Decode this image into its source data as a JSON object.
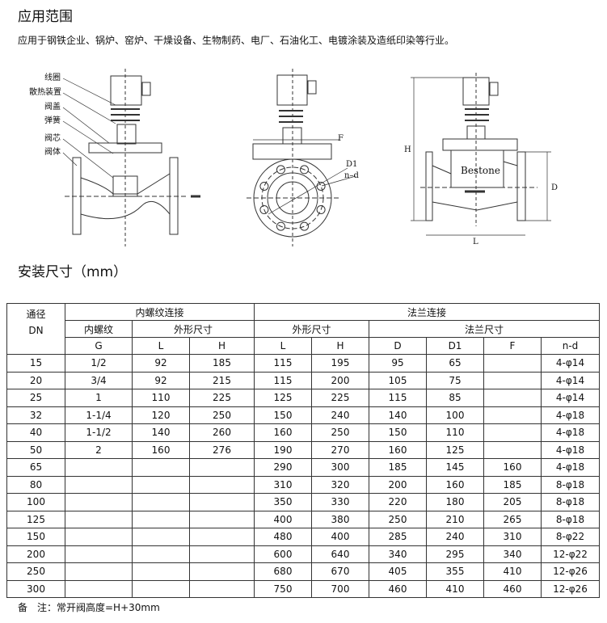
{
  "scope": {
    "title": "应用范围",
    "text": "应用于钢铁企业、锅炉、窑炉、干燥设备、生物制药、电厂、石油化工、电镀涂装及造纸印染等行业。"
  },
  "diagram": {
    "parts": [
      "线圈",
      "散热装置",
      "阀盖",
      "弹簧",
      "阀芯",
      "阀体"
    ],
    "dims": {
      "F": "F",
      "D1": "D1",
      "nd": "n–d",
      "H": "H",
      "D": "D",
      "L": "L"
    },
    "brand": "Bestone"
  },
  "install": {
    "title": "安装尺寸（mm）"
  },
  "table": {
    "h_dn1": "通径",
    "h_dn2": "DN",
    "h_thread": "内螺纹连接",
    "h_flange": "法兰连接",
    "h_thread_sub": "内螺纹",
    "h_outline": "外形尺寸",
    "h_outline2": "外形尺寸",
    "h_flange_size": "法兰尺寸",
    "cols": [
      "G",
      "L",
      "H",
      "L",
      "H",
      "D",
      "D1",
      "F",
      "n-d"
    ],
    "rows": [
      [
        "15",
        "1/2",
        "92",
        "185",
        "115",
        "195",
        "95",
        "65",
        "",
        "4-φ14"
      ],
      [
        "20",
        "3/4",
        "92",
        "215",
        "115",
        "200",
        "105",
        "75",
        "",
        "4-φ14"
      ],
      [
        "25",
        "1",
        "110",
        "225",
        "125",
        "225",
        "115",
        "85",
        "",
        "4-φ14"
      ],
      [
        "32",
        "1-1/4",
        "120",
        "250",
        "150",
        "240",
        "140",
        "100",
        "",
        "4-φ18"
      ],
      [
        "40",
        "1-1/2",
        "140",
        "260",
        "160",
        "250",
        "150",
        "110",
        "",
        "4-φ18"
      ],
      [
        "50",
        "2",
        "160",
        "276",
        "190",
        "270",
        "160",
        "125",
        "",
        "4-φ18"
      ],
      [
        "65",
        "",
        "",
        "",
        "290",
        "300",
        "185",
        "145",
        "160",
        "4-φ18"
      ],
      [
        "80",
        "",
        "",
        "",
        "310",
        "320",
        "200",
        "160",
        "185",
        "8-φ18"
      ],
      [
        "100",
        "",
        "",
        "",
        "350",
        "330",
        "220",
        "180",
        "205",
        "8-φ18"
      ],
      [
        "125",
        "",
        "",
        "",
        "400",
        "380",
        "250",
        "210",
        "265",
        "8-φ18"
      ],
      [
        "150",
        "",
        "",
        "",
        "480",
        "400",
        "285",
        "240",
        "310",
        "8-φ22"
      ],
      [
        "200",
        "",
        "",
        "",
        "600",
        "640",
        "340",
        "295",
        "340",
        "12-φ22"
      ],
      [
        "250",
        "",
        "",
        "",
        "680",
        "670",
        "405",
        "355",
        "410",
        "12-φ26"
      ],
      [
        "300",
        "",
        "",
        "",
        "750",
        "700",
        "460",
        "410",
        "460",
        "12-φ26"
      ]
    ]
  },
  "note": "备　注：常开阀高度=H+30mm"
}
